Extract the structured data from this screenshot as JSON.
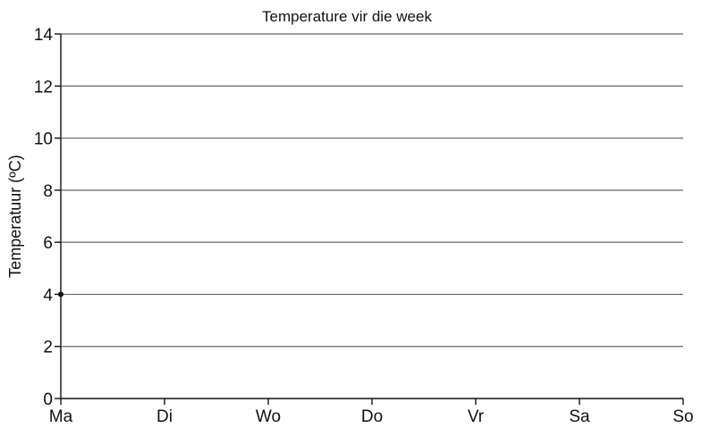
{
  "chart_data": {
    "type": "line",
    "title": "Temperature vir die week",
    "xlabel": "",
    "ylabel": "Temperatuur (ºC)",
    "categories": [
      "Ma",
      "Di",
      "Wo",
      "Do",
      "Vr",
      "Sa",
      "So"
    ],
    "yticks": [
      "0",
      "2",
      "4",
      "6",
      "8",
      "10",
      "12",
      "14"
    ],
    "ylim": [
      0,
      14
    ],
    "grid": true,
    "series": [
      {
        "values": [
          4,
          null,
          null,
          null,
          null,
          null,
          null
        ]
      }
    ]
  }
}
